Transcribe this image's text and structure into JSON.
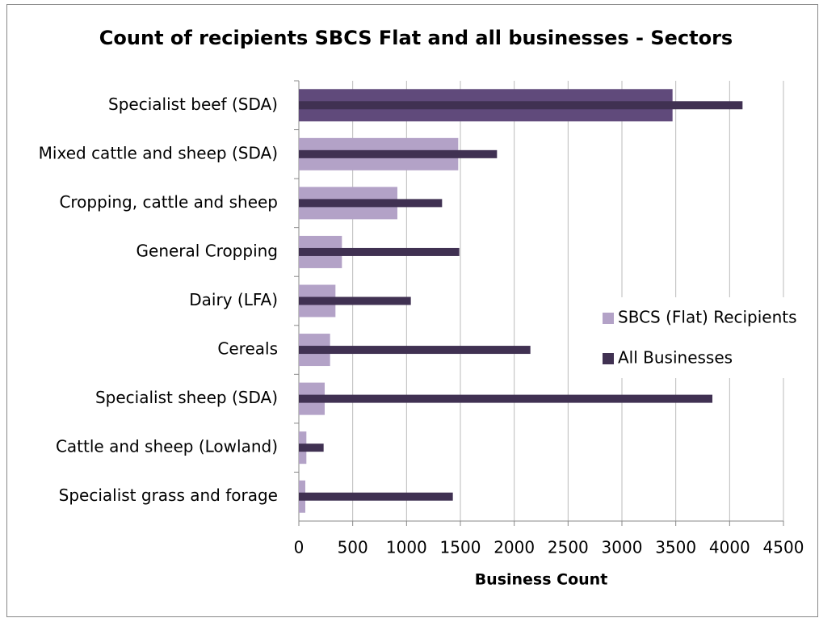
{
  "chart_data": {
    "type": "hbar",
    "title": "Count of recipients SBCS Flat and all businesses - Sectors",
    "xlabel": "Business Count",
    "categories": [
      "Specialist beef (SDA)",
      "Mixed cattle and sheep (SDA)",
      "Cropping, cattle and sheep",
      "General Cropping",
      "Dairy (LFA)",
      "Cereals",
      "Specialist sheep (SDA)",
      "Cattle and sheep (Lowland)",
      "Specialist grass and forage"
    ],
    "series": [
      {
        "name": "SBCS (Flat) Recipients",
        "color": "#b3a2c7",
        "colors": [
          "#604a7b",
          "#b3a2c7",
          "#b3a2c7",
          "#b3a2c7",
          "#b3a2c7",
          "#b3a2c7",
          "#b3a2c7",
          "#b3a2c7",
          "#b3a2c7"
        ],
        "values": [
          3470,
          1480,
          915,
          400,
          340,
          290,
          240,
          70,
          60
        ]
      },
      {
        "name": "All Businesses",
        "color": "#403152",
        "values": [
          4120,
          1840,
          1330,
          1490,
          1040,
          2150,
          3840,
          230,
          1430
        ]
      }
    ],
    "xlim": [
      0,
      4500
    ],
    "xticks": [
      0,
      500,
      1000,
      1500,
      2000,
      2500,
      3000,
      3500,
      4000,
      4500
    ],
    "grid": true,
    "legend": "right"
  }
}
